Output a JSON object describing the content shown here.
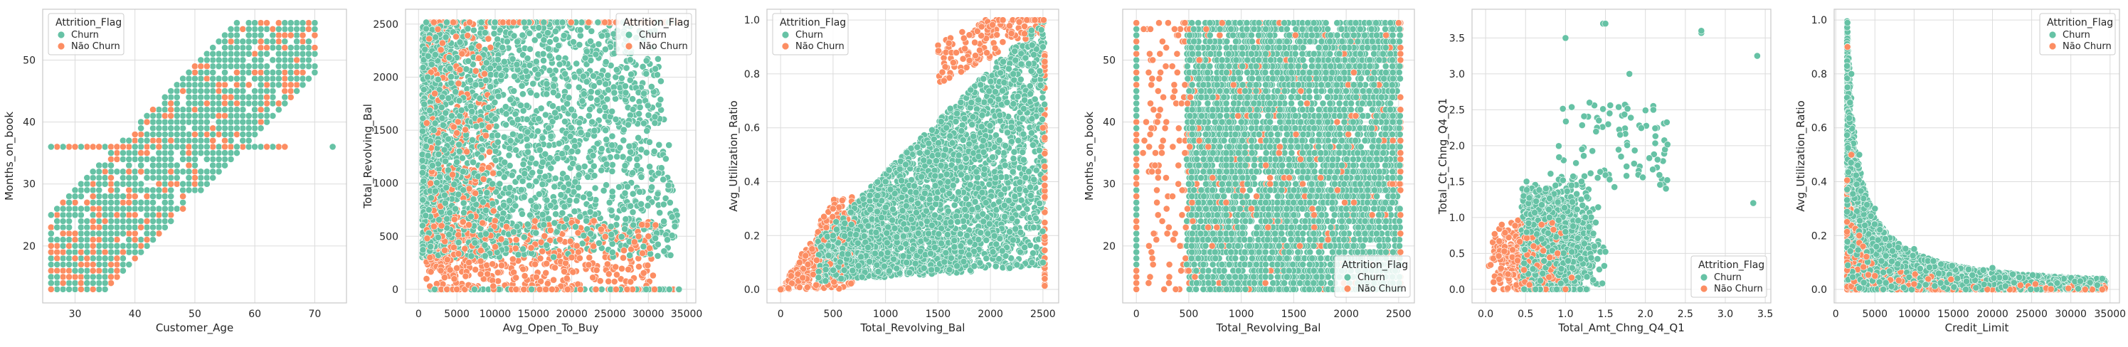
{
  "colors": {
    "churn": "#66c2a5",
    "nao_churn": "#fc8d62",
    "grid": "#dcdcdc",
    "frame": "#c8c8c8",
    "background": "#ffffff"
  },
  "chart_data": [
    {
      "type": "scatter",
      "xlabel": "Customer_Age",
      "ylabel": "Months_on_book",
      "xlim": [
        24.6,
        75.3
      ],
      "ylim": [
        10.8,
        58.2
      ],
      "xticks": [
        30,
        40,
        50,
        60,
        70
      ],
      "yticks": [
        20,
        30,
        40,
        50
      ],
      "legend": {
        "title": "Attrition_Flag",
        "entries": [
          "Churn",
          "Não Churn"
        ],
        "placement": "upper-left"
      },
      "grid": true,
      "pattern": "age_tenure",
      "series": [
        {
          "name": "Churn",
          "color": "#66c2a5",
          "sample_points": [
            [
              26,
              13
            ],
            [
              26,
              36
            ],
            [
              30,
              20
            ],
            [
              35,
              25
            ],
            [
              40,
              30
            ],
            [
              45,
              36
            ],
            [
              50,
              40
            ],
            [
              55,
              45
            ],
            [
              60,
              50
            ],
            [
              65,
              56
            ],
            [
              70,
              56
            ],
            [
              73,
              36
            ]
          ]
        },
        {
          "name": "Não Churn",
          "color": "#fc8d62",
          "sample_points": [
            [
              26,
              13
            ],
            [
              30,
              18
            ],
            [
              35,
              24
            ],
            [
              40,
              28
            ],
            [
              44,
              36
            ],
            [
              50,
              38
            ],
            [
              55,
              44
            ],
            [
              60,
              48
            ],
            [
              65,
              52
            ]
          ]
        }
      ]
    },
    {
      "type": "scatter",
      "xlabel": "Avg_Open_To_Buy",
      "ylabel": "Total_Revolving_Bal",
      "xlim": [
        -1700,
        36200
      ],
      "ylim": [
        -128,
        2640
      ],
      "xticks": [
        0,
        5000,
        10000,
        15000,
        20000,
        25000,
        30000,
        35000
      ],
      "yticks": [
        0,
        500,
        1000,
        1500,
        2000,
        2500
      ],
      "legend": {
        "title": "Attrition_Flag",
        "entries": [
          "Churn",
          "Não Churn"
        ],
        "placement": "upper-right"
      },
      "grid": true,
      "pattern": "open_revolving",
      "series": [
        {
          "name": "Churn",
          "color": "#66c2a5",
          "sample_points": [
            [
              2000,
              1500
            ],
            [
              5000,
              1200
            ],
            [
              8000,
              1800
            ],
            [
              12000,
              1400
            ],
            [
              20000,
              1300
            ],
            [
              28000,
              900
            ],
            [
              32000,
              800
            ],
            [
              34000,
              0
            ],
            [
              1000,
              2517
            ]
          ]
        },
        {
          "name": "Não Churn",
          "color": "#fc8d62",
          "sample_points": [
            [
              1500,
              300
            ],
            [
              3000,
              600
            ],
            [
              5000,
              200
            ],
            [
              10000,
              400
            ],
            [
              20000,
              300
            ],
            [
              30000,
              500
            ],
            [
              2000,
              2517
            ],
            [
              5000,
              0
            ]
          ]
        }
      ]
    },
    {
      "type": "scatter",
      "xlabel": "Total_Revolving_Bal",
      "ylabel": "Avg_Utilization_Ratio",
      "xlim": [
        -130,
        2650
      ],
      "ylim": [
        -0.05,
        1.04
      ],
      "xticks": [
        0,
        500,
        1000,
        1500,
        2000,
        2500
      ],
      "yticks": [
        0.0,
        0.2,
        0.4,
        0.6,
        0.8,
        1.0
      ],
      "legend": {
        "title": "Attrition_Flag",
        "entries": [
          "Churn",
          "Não Churn"
        ],
        "placement": "upper-left"
      },
      "grid": true,
      "pattern": "revolving_util",
      "series": [
        {
          "name": "Churn",
          "color": "#66c2a5",
          "sample_points": [
            [
              500,
              0.2
            ],
            [
              1000,
              0.4
            ],
            [
              1500,
              0.5
            ],
            [
              2000,
              0.7
            ],
            [
              2500,
              0.9
            ],
            [
              2500,
              0.1
            ],
            [
              1200,
              0.1
            ]
          ]
        },
        {
          "name": "Não Churn",
          "color": "#fc8d62",
          "sample_points": [
            [
              100,
              0.05
            ],
            [
              300,
              0.15
            ],
            [
              500,
              0.3
            ],
            [
              2200,
              0.95
            ],
            [
              2500,
              0.6
            ],
            [
              1800,
              0.85
            ]
          ]
        }
      ]
    },
    {
      "type": "scatter",
      "xlabel": "Total_Revolving_Bal",
      "ylabel": "Months_on_book",
      "xlim": [
        -130,
        2650
      ],
      "ylim": [
        10.8,
        58.2
      ],
      "xticks": [
        0,
        500,
        1000,
        1500,
        2000,
        2500
      ],
      "yticks": [
        20,
        30,
        40,
        50
      ],
      "legend": {
        "title": "Attrition_Flag",
        "entries": [
          "Churn",
          "Não Churn"
        ],
        "placement": "lower-right"
      },
      "grid": true,
      "pattern": "revolving_months",
      "series": [
        {
          "name": "Churn",
          "color": "#66c2a5",
          "sample_points": [
            [
              0,
              36
            ],
            [
              500,
              30
            ],
            [
              1000,
              40
            ],
            [
              1500,
              25
            ],
            [
              2000,
              45
            ],
            [
              2500,
              56
            ],
            [
              2500,
              13
            ]
          ]
        },
        {
          "name": "Não Churn",
          "color": "#fc8d62",
          "sample_points": [
            [
              0,
              13
            ],
            [
              0,
              56
            ],
            [
              200,
              40
            ],
            [
              400,
              30
            ],
            [
              600,
              50
            ],
            [
              2500,
              56
            ]
          ]
        }
      ]
    },
    {
      "type": "scatter",
      "xlabel": "Total_Amt_Chng_Q4_Q1",
      "ylabel": "Total_Ct_Chng_Q4_Q1",
      "xlim": [
        -0.17,
        3.57
      ],
      "ylim": [
        -0.19,
        3.9
      ],
      "xticks": [
        0.0,
        0.5,
        1.0,
        1.5,
        2.0,
        2.5,
        3.0,
        3.5
      ],
      "yticks": [
        0.0,
        0.5,
        1.0,
        1.5,
        2.0,
        2.5,
        3.0,
        3.5
      ],
      "legend": {
        "title": "Attrition_Flag",
        "entries": [
          "Churn",
          "Não Churn"
        ],
        "placement": "lower-right"
      },
      "grid": true,
      "pattern": "amt_ct",
      "series": [
        {
          "name": "Churn",
          "color": "#66c2a5",
          "sample_points": [
            [
              0.7,
              0.7
            ],
            [
              0.8,
              1.0
            ],
            [
              1.0,
              0.8
            ],
            [
              1.2,
              1.5
            ],
            [
              1.5,
              3.7
            ],
            [
              2.7,
              3.6
            ],
            [
              3.4,
              3.25
            ],
            [
              3.35,
              1.2
            ],
            [
              1.8,
              3.0
            ]
          ]
        },
        {
          "name": "Não Churn",
          "color": "#fc8d62",
          "sample_points": [
            [
              0.1,
              0.1
            ],
            [
              0.4,
              0.4
            ],
            [
              0.6,
              0.6
            ],
            [
              0.7,
              0.9
            ],
            [
              0.9,
              0.5
            ],
            [
              1.0,
              0.0
            ]
          ]
        }
      ]
    },
    {
      "type": "scatter",
      "xlabel": "Credit_Limit",
      "ylabel": "Avg_Utilization_Ratio",
      "xlim": [
        -200,
        36200
      ],
      "ylim": [
        -0.05,
        1.04
      ],
      "xticks": [
        0,
        5000,
        10000,
        15000,
        20000,
        25000,
        30000,
        35000
      ],
      "yticks": [
        0.0,
        0.2,
        0.4,
        0.6,
        0.8,
        1.0
      ],
      "legend": {
        "title": "Attrition_Flag",
        "entries": [
          "Churn",
          "Não Churn"
        ],
        "placement": "upper-right"
      },
      "grid": true,
      "pattern": "credit_util",
      "series": [
        {
          "name": "Churn",
          "color": "#66c2a5",
          "sample_points": [
            [
              1500,
              0.99
            ],
            [
              2000,
              0.8
            ],
            [
              3000,
              0.5
            ],
            [
              5000,
              0.3
            ],
            [
              10000,
              0.15
            ],
            [
              20000,
              0.08
            ],
            [
              34000,
              0.04
            ]
          ]
        },
        {
          "name": "Não Churn",
          "color": "#fc8d62",
          "sample_points": [
            [
              1500,
              0.9
            ],
            [
              2000,
              0.5
            ],
            [
              3000,
              0.2
            ],
            [
              5000,
              0.05
            ],
            [
              10000,
              0.02
            ],
            [
              34000,
              0.0
            ]
          ]
        }
      ]
    }
  ]
}
